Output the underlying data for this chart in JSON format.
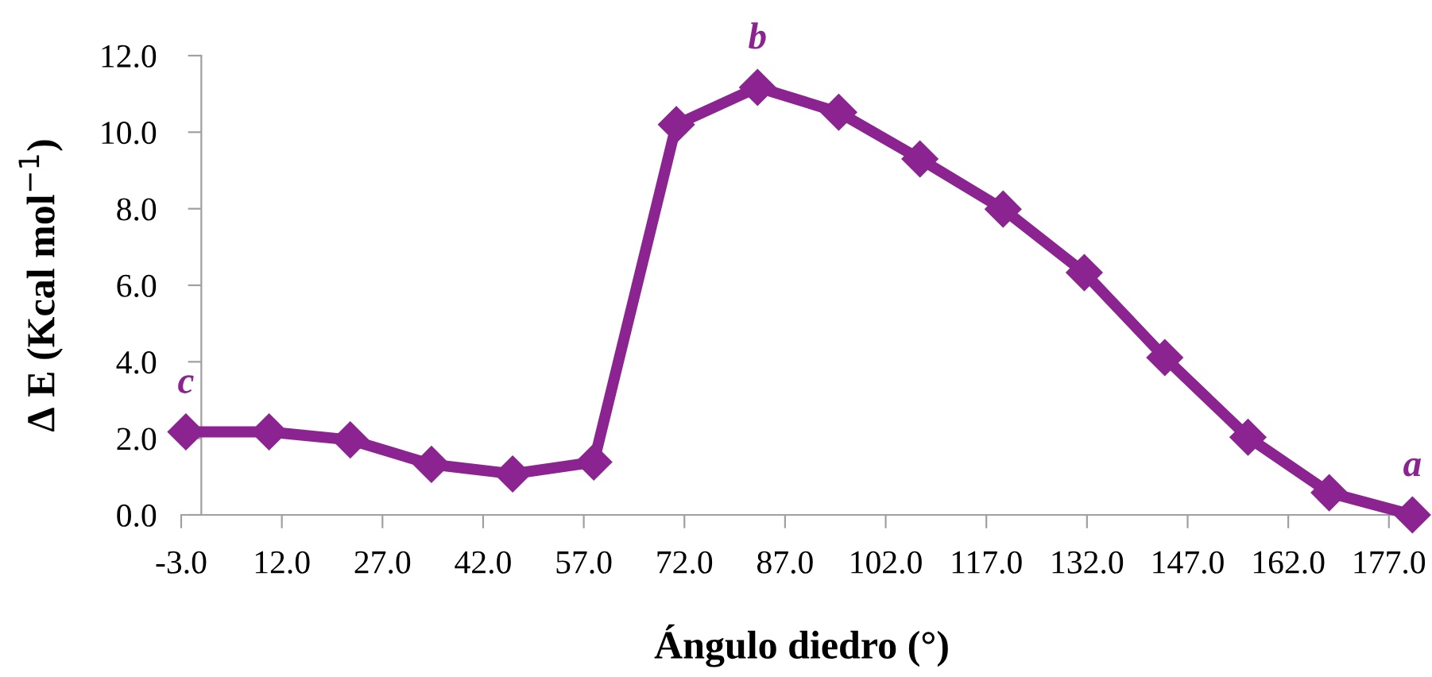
{
  "chart_data": {
    "type": "line",
    "xlabel": "Ángulo diedro (°)",
    "ylabel": "Δ E (Kcal mol$^{−1}$)",
    "x": [
      -2.3,
      10.1,
      22.2,
      34.3,
      46.4,
      58.5,
      70.8,
      82.9,
      95.0,
      107.1,
      119.5,
      131.6,
      143.6,
      156.0,
      168.1,
      180.5
    ],
    "series": [
      {
        "color": "#8b2391",
        "values": [
          2.17,
          2.17,
          1.96,
          1.32,
          1.07,
          1.38,
          10.2,
          11.17,
          10.52,
          9.3,
          7.99,
          6.33,
          4.11,
          2.03,
          0.58,
          0.0
        ]
      }
    ],
    "xlim": [
      -3,
      182
    ],
    "xticks": [
      {
        "value": -3,
        "label": "-3.0"
      },
      {
        "value": 12,
        "label": "12.0"
      },
      {
        "value": 27,
        "label": "27.0"
      },
      {
        "value": 42,
        "label": "42.0"
      },
      {
        "value": 57,
        "label": "57.0"
      },
      {
        "value": 72,
        "label": "72.0"
      },
      {
        "value": 87,
        "label": "87.0"
      },
      {
        "value": 102,
        "label": "102.0"
      },
      {
        "value": 117,
        "label": "117.0"
      },
      {
        "value": 132,
        "label": "132.0"
      },
      {
        "value": 147,
        "label": "147.0"
      },
      {
        "value": 162,
        "label": "162.0"
      },
      {
        "value": 177,
        "label": "177.0"
      }
    ],
    "ylim": [
      0,
      12
    ],
    "yticks": [
      {
        "value": 0,
        "label": "0.0"
      },
      {
        "value": 2,
        "label": "2.0"
      },
      {
        "value": 4,
        "label": "4.0"
      },
      {
        "value": 6,
        "label": "6.0"
      },
      {
        "value": 8,
        "label": "8.0"
      },
      {
        "value": 10,
        "label": "10.0"
      },
      {
        "value": 12,
        "label": "12.0"
      }
    ],
    "annotations": [
      {
        "text": "c",
        "x": -2.3,
        "y": 2.17
      },
      {
        "text": "b",
        "x": 82.9,
        "y": 11.17
      },
      {
        "text": "a",
        "x": 180.5,
        "y": 0.0
      }
    ],
    "marker": "diamond",
    "line_style": "solid",
    "grid": false,
    "legend": false
  }
}
